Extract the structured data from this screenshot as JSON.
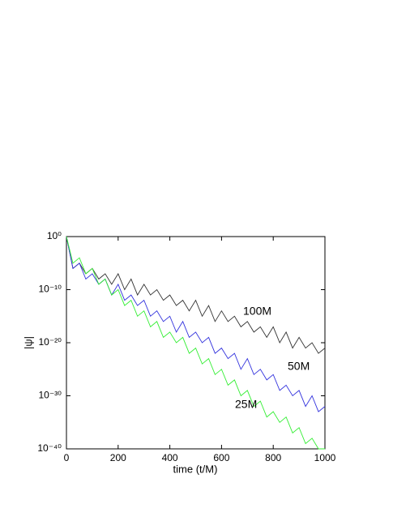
{
  "chart_data": {
    "type": "line",
    "x_label": "time (t/M)",
    "y_label": "|ψ|",
    "log_y": true,
    "xlim": [
      0,
      1000
    ],
    "xticks": [
      0,
      200,
      400,
      600,
      800,
      1000
    ],
    "ylim": [
      1e-40,
      1
    ],
    "yticks": [
      {
        "value": 1,
        "label": "10⁰"
      },
      {
        "value": 1e-10,
        "label": "10⁻¹⁰"
      },
      {
        "value": 1e-20,
        "label": "10⁻²⁰"
      },
      {
        "value": 1e-30,
        "label": "10⁻³⁰"
      },
      {
        "value": 1e-40,
        "label": "10⁻⁴⁰"
      }
    ],
    "x": [
      0,
      25,
      50,
      75,
      100,
      125,
      150,
      175,
      200,
      225,
      250,
      275,
      300,
      325,
      350,
      375,
      400,
      425,
      450,
      475,
      500,
      525,
      550,
      575,
      600,
      625,
      650,
      675,
      700,
      725,
      750,
      775,
      800,
      825,
      850,
      875,
      900,
      925,
      950,
      975,
      1000
    ],
    "series": [
      {
        "name": "100M",
        "color": "#333333",
        "values": [
          1,
          1e-06,
          1e-05,
          1e-07,
          1e-06,
          1e-08,
          1e-07,
          1e-09,
          1e-07,
          1e-10,
          1e-08,
          1e-11,
          1e-09,
          1e-11,
          1e-10,
          1e-12,
          1e-11,
          1e-13,
          1e-12,
          1e-14,
          1e-12,
          1e-15,
          1e-13,
          1e-16,
          1e-14,
          1e-16,
          1e-15,
          1e-17,
          1e-16,
          1e-18,
          1e-17,
          1e-19,
          1e-17,
          1e-20,
          1e-18,
          1e-21,
          1e-19,
          1e-21,
          1e-20,
          1e-22,
          1e-21
        ]
      },
      {
        "name": "50M",
        "color": "#3333dd",
        "values": [
          1,
          1e-06,
          1e-05,
          1e-08,
          1e-07,
          1e-09,
          1e-08,
          1e-11,
          1e-09,
          1e-12,
          1e-11,
          1e-13,
          1e-12,
          1e-15,
          1e-14,
          1e-16,
          1e-15,
          1e-18,
          1e-16,
          1e-19,
          1e-18,
          1e-20,
          1e-19,
          1e-22,
          1e-21,
          1e-23,
          1e-22,
          1e-25,
          1e-23,
          1e-26,
          1e-25,
          1e-27,
          1e-26,
          1e-29,
          1e-28,
          1e-30,
          1e-29,
          1e-32,
          1e-30,
          1e-33,
          1e-32
        ]
      },
      {
        "name": "25M",
        "color": "#33ee33",
        "values": [
          1,
          1e-05,
          0.0001,
          1e-07,
          1e-06,
          1e-09,
          1e-08,
          1e-11,
          1e-10,
          1e-13,
          1e-12,
          1e-15,
          1e-14,
          1e-17,
          1e-16,
          1e-19,
          1e-18,
          1e-20,
          1e-19,
          1e-22,
          1e-21,
          1e-24,
          1e-23,
          1e-26,
          1e-25,
          1e-28,
          1e-27,
          1e-30,
          1e-29,
          1e-32,
          1e-31,
          1e-34,
          1e-33,
          1e-35,
          1e-34,
          1e-37,
          1e-36,
          1e-39,
          1e-38,
          1e-40,
          1e-40
        ]
      }
    ]
  }
}
